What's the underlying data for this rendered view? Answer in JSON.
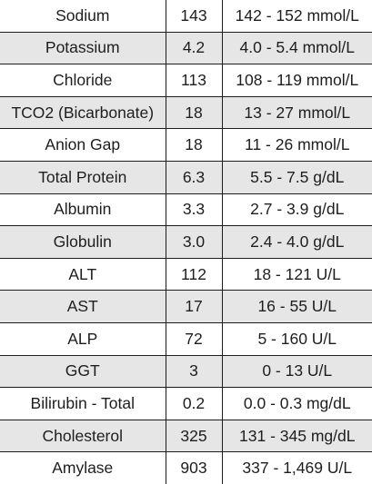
{
  "rows": [
    {
      "test": "Sodium",
      "value": "143",
      "range": "142 - 152 mmol/L"
    },
    {
      "test": "Potassium",
      "value": "4.2",
      "range": "4.0 - 5.4 mmol/L"
    },
    {
      "test": "Chloride",
      "value": "113",
      "range": "108 - 119 mmol/L"
    },
    {
      "test": "TCO2 (Bicarbonate)",
      "value": "18",
      "range": "13 - 27 mmol/L"
    },
    {
      "test": "Anion Gap",
      "value": "18",
      "range": "11 - 26 mmol/L"
    },
    {
      "test": "Total Protein",
      "value": "6.3",
      "range": "5.5 - 7.5 g/dL"
    },
    {
      "test": "Albumin",
      "value": "3.3",
      "range": "2.7 - 3.9 g/dL"
    },
    {
      "test": "Globulin",
      "value": "3.0",
      "range": "2.4 - 4.0 g/dL"
    },
    {
      "test": "ALT",
      "value": "112",
      "range": "18 - 121 U/L"
    },
    {
      "test": "AST",
      "value": "17",
      "range": "16 - 55 U/L"
    },
    {
      "test": "ALP",
      "value": "72",
      "range": "5 - 160 U/L"
    },
    {
      "test": "GGT",
      "value": "3",
      "range": "0 - 13 U/L"
    },
    {
      "test": "Bilirubin - Total",
      "value": "0.2",
      "range": "0.0 - 0.3 mg/dL"
    },
    {
      "test": "Cholesterol",
      "value": "325",
      "range": "131 - 345 mg/dL"
    },
    {
      "test": "Amylase",
      "value": "903",
      "range": "337 - 1,469 U/L"
    }
  ]
}
